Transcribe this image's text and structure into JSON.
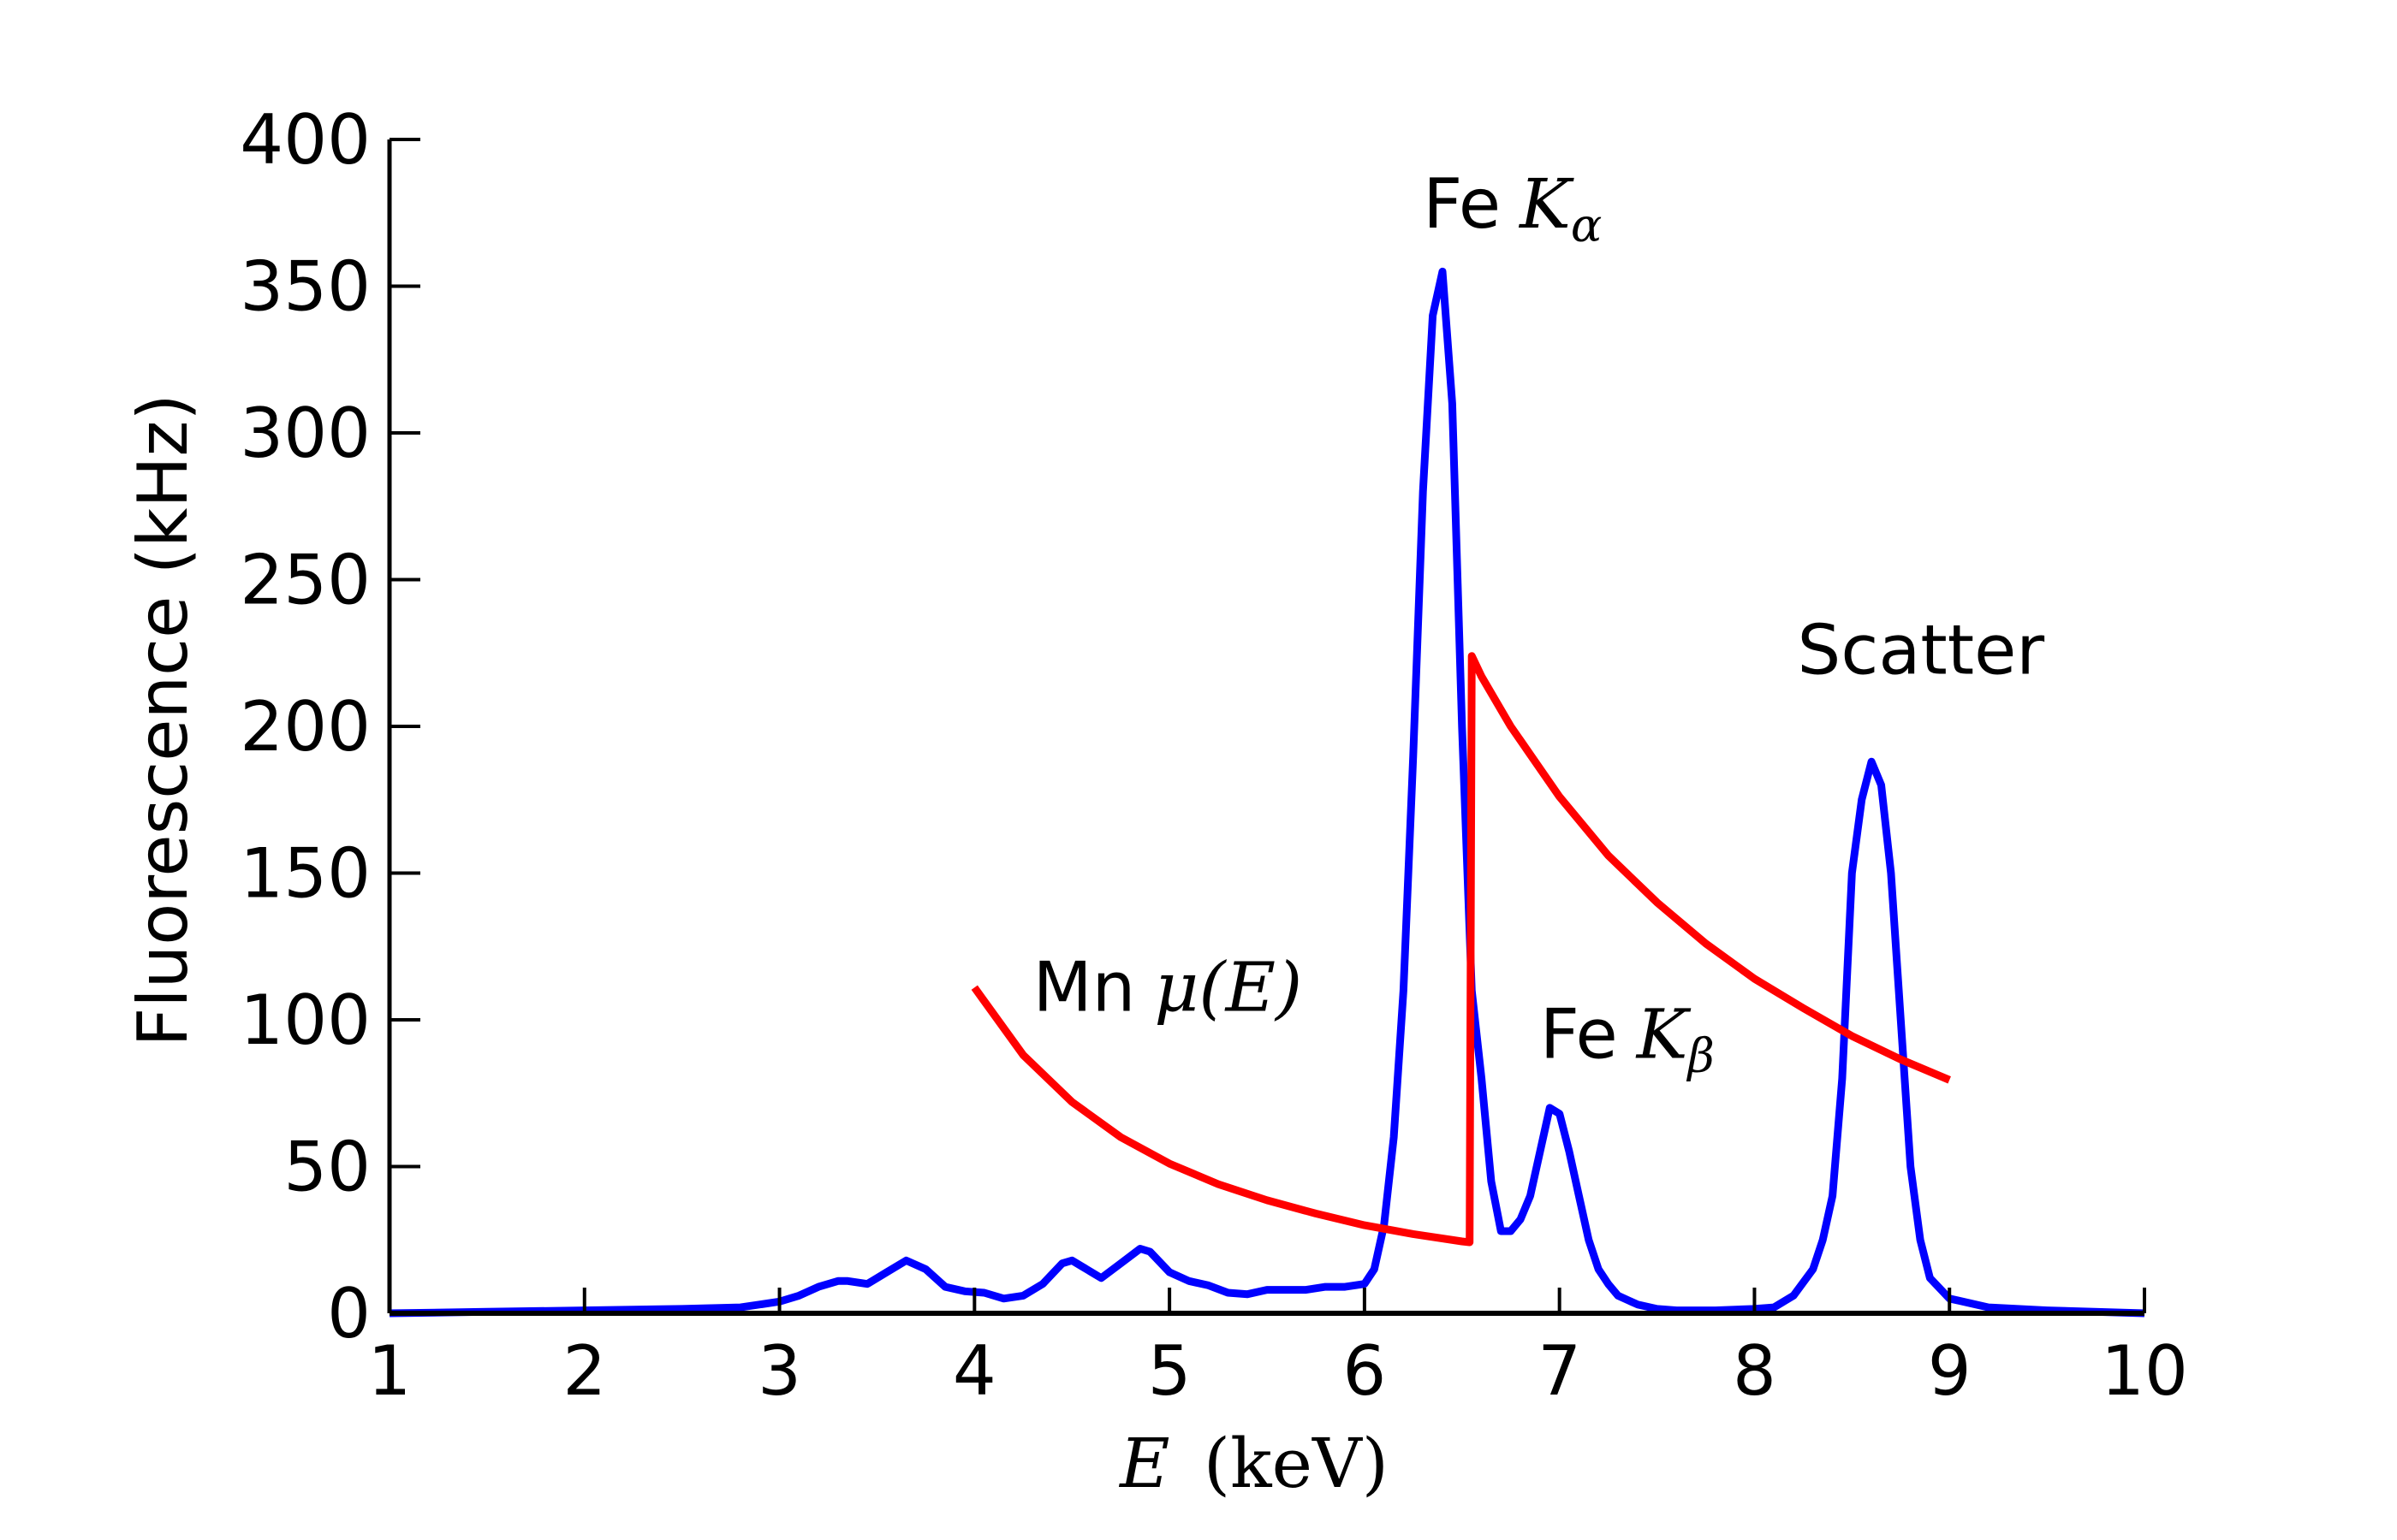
{
  "chart_data": {
    "type": "line",
    "xlabel": {
      "var": "E",
      "unit": "(keV)"
    },
    "ylabel": "Fluorescence (kHz)",
    "xlim": [
      1,
      10
    ],
    "ylim": [
      0,
      400
    ],
    "xticks": [
      1,
      2,
      3,
      4,
      5,
      6,
      7,
      8,
      9,
      10
    ],
    "yticks": [
      0,
      50,
      100,
      150,
      200,
      250,
      300,
      350,
      400
    ],
    "grid": false,
    "series": [
      {
        "color": "#0000ff",
        "x": [
          1.0,
          1.5,
          2.0,
          2.5,
          2.8,
          3.0,
          3.1,
          3.2,
          3.3,
          3.35,
          3.45,
          3.55,
          3.65,
          3.75,
          3.85,
          3.95,
          4.05,
          4.15,
          4.25,
          4.35,
          4.45,
          4.5,
          4.55,
          4.65,
          4.75,
          4.85,
          4.9,
          5.0,
          5.1,
          5.2,
          5.3,
          5.4,
          5.5,
          5.6,
          5.7,
          5.8,
          5.9,
          6.0,
          6.05,
          6.1,
          6.15,
          6.2,
          6.25,
          6.3,
          6.35,
          6.4,
          6.45,
          6.5,
          6.55,
          6.6,
          6.65,
          6.7,
          6.75,
          6.8,
          6.85,
          6.9,
          6.95,
          7.0,
          7.05,
          7.1,
          7.15,
          7.2,
          7.25,
          7.3,
          7.4,
          7.5,
          7.6,
          7.8,
          8.0,
          8.1,
          8.2,
          8.3,
          8.35,
          8.4,
          8.45,
          8.5,
          8.55,
          8.6,
          8.65,
          8.7,
          8.75,
          8.8,
          8.85,
          8.9,
          9.0,
          9.2,
          9.5,
          10.0
        ],
        "y": [
          0,
          0.5,
          1,
          1.5,
          2,
          4,
          6,
          9,
          11,
          11,
          10,
          14,
          18,
          15,
          9,
          7.5,
          7,
          5,
          6,
          10,
          17,
          18,
          16,
          12,
          17,
          22,
          21,
          14,
          11,
          9.5,
          7,
          6.5,
          8,
          8,
          8,
          9,
          9,
          10,
          15,
          30,
          60,
          110,
          190,
          280,
          340,
          355,
          310,
          200,
          110,
          80,
          45,
          28,
          28,
          32,
          40,
          55,
          70,
          68,
          55,
          40,
          25,
          15,
          10,
          6,
          3,
          1.5,
          1,
          1,
          1.5,
          2,
          6,
          15,
          25,
          40,
          80,
          150,
          175,
          188,
          180,
          150,
          100,
          50,
          25,
          12,
          5,
          2,
          1,
          0
        ],
        "endpoint_y": [
          0,
          8
        ]
      },
      {
        "name": "Mn μ(E)",
        "color": "#ff0000",
        "x": [
          4.0,
          4.25,
          4.5,
          4.75,
          5.0,
          5.25,
          5.5,
          5.75,
          6.0,
          6.25,
          6.5,
          6.539,
          6.55,
          6.6,
          6.75,
          7.0,
          7.25,
          7.5,
          7.75,
          8.0,
          8.25,
          8.5,
          8.75,
          9.0
        ],
        "y": [
          111,
          88,
          72,
          60,
          51,
          44,
          38.5,
          34,
          30,
          27,
          24.5,
          24.2,
          224,
          217,
          200,
          176,
          156,
          140,
          126,
          114,
          104,
          94.5,
          86.5,
          79.5
        ]
      }
    ],
    "annotations": [
      {
        "text": "Fe",
        "math": "K",
        "sub": "α",
        "x": 6.3,
        "y": 370
      },
      {
        "text": "Fe",
        "math": "K",
        "sub": "β",
        "x": 6.9,
        "y": 87
      },
      {
        "text": "Scatter",
        "x": 8.22,
        "y": 218
      },
      {
        "text": "Mn",
        "math": "μ(E)",
        "x": 4.3,
        "y": 103
      }
    ]
  }
}
